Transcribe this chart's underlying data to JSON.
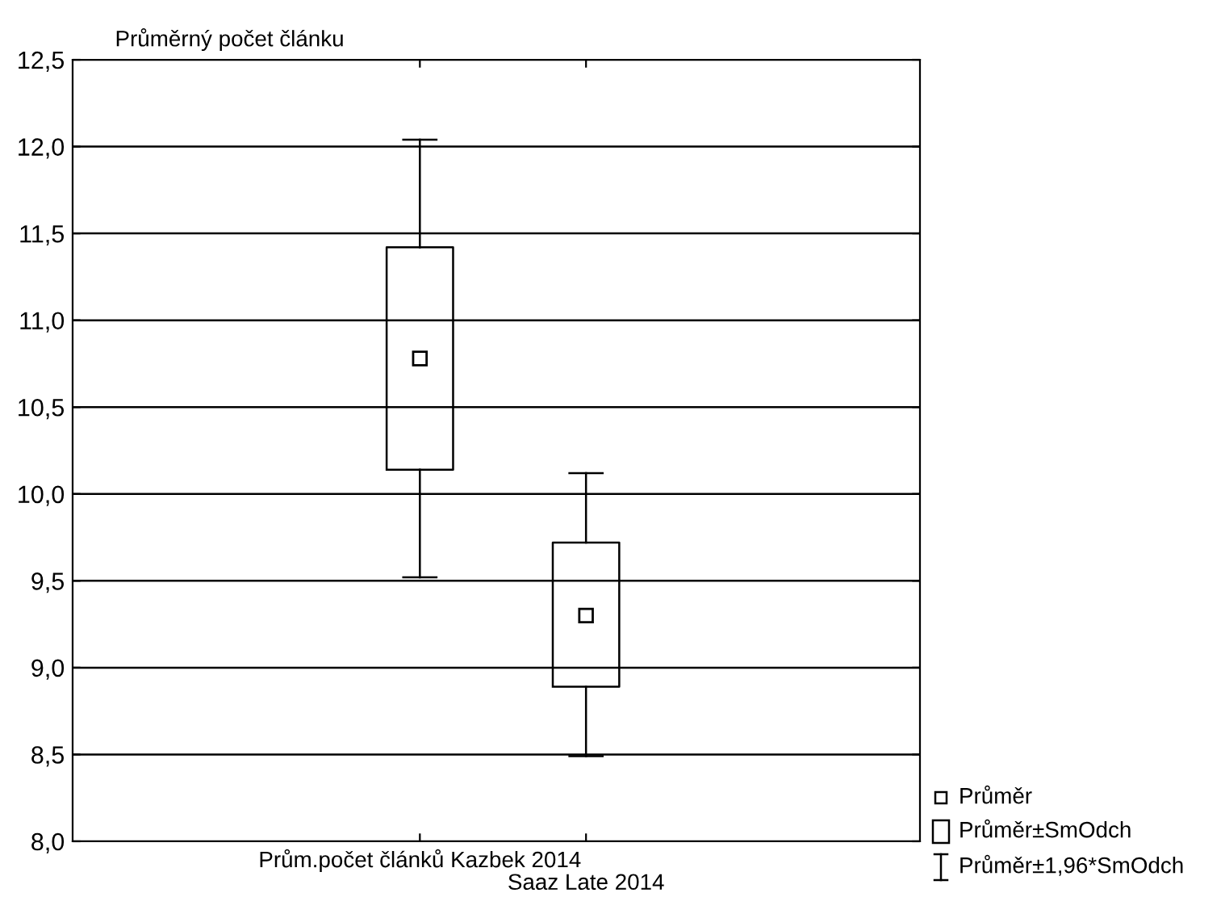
{
  "chart_data": {
    "type": "box",
    "title": "Průměrný počet článku",
    "categories": [
      "Prům.počet článků Kazbek 2014",
      "Saaz Late 2014"
    ],
    "boxes": [
      {
        "low": 9.52,
        "q1": 10.14,
        "median": 10.78,
        "q3": 11.42,
        "high": 12.04
      },
      {
        "low": 8.49,
        "q1": 8.89,
        "median": 9.3,
        "q3": 9.72,
        "high": 10.12
      }
    ],
    "ylim": [
      8.0,
      12.5
    ],
    "yticks": [
      {
        "value": 8.0,
        "label": "8,0"
      },
      {
        "value": 8.5,
        "label": "8,5"
      },
      {
        "value": 9.0,
        "label": "9,0"
      },
      {
        "value": 9.5,
        "label": "9,5"
      },
      {
        "value": 10.0,
        "label": "10,0"
      },
      {
        "value": 10.5,
        "label": "10,5"
      },
      {
        "value": 11.0,
        "label": "11,0"
      },
      {
        "value": 11.5,
        "label": "11,5"
      },
      {
        "value": 12.0,
        "label": "12,0"
      },
      {
        "value": 12.5,
        "label": "12,5"
      }
    ],
    "grid": "y",
    "marker": "square",
    "annotations": [
      "Průměr",
      "Průměr±SmOdch",
      "Průměr±1,96*SmOdch"
    ]
  }
}
